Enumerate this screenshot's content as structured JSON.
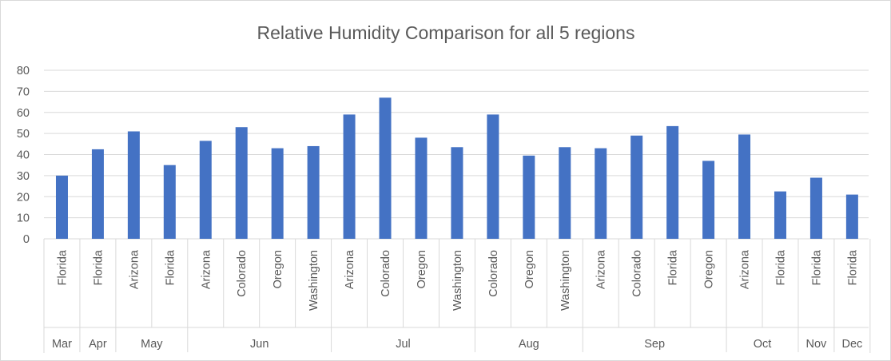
{
  "chart_data": {
    "type": "bar",
    "title": "Relative Humidity Comparison for all 5 regions",
    "xlabel": "",
    "ylabel": "",
    "ylim": [
      0,
      80
    ],
    "yticks": [
      0,
      10,
      20,
      30,
      40,
      50,
      60,
      70,
      80
    ],
    "grid": true,
    "legend": "none",
    "bar_color": "#4472c4",
    "groups": [
      {
        "label": "Mar",
        "categories": [
          "Florida"
        ],
        "values": [
          30
        ]
      },
      {
        "label": "Apr",
        "categories": [
          "Florida"
        ],
        "values": [
          42.5
        ]
      },
      {
        "label": "May",
        "categories": [
          "Arizona",
          "Florida"
        ],
        "values": [
          51,
          35
        ]
      },
      {
        "label": "Jun",
        "categories": [
          "Arizona",
          "Colorado",
          "Oregon",
          "Washington"
        ],
        "values": [
          46.5,
          53,
          43,
          44
        ]
      },
      {
        "label": "Jul",
        "categories": [
          "Arizona",
          "Colorado",
          "Oregon",
          "Washington"
        ],
        "values": [
          59,
          67,
          48,
          43.5
        ]
      },
      {
        "label": "Aug",
        "categories": [
          "Colorado",
          "Oregon",
          "Washington"
        ],
        "values": [
          59,
          39.5,
          43.5
        ]
      },
      {
        "label": "Sep",
        "categories": [
          "Arizona",
          "Colorado",
          "Florida",
          "Oregon"
        ],
        "values": [
          43,
          49,
          53.5,
          37
        ]
      },
      {
        "label": "Oct",
        "categories": [
          "Arizona",
          "Florida"
        ],
        "values": [
          49.5,
          22.5
        ]
      },
      {
        "label": "Nov",
        "categories": [
          "Florida"
        ],
        "values": [
          29
        ]
      },
      {
        "label": "Dec",
        "categories": [
          "Florida"
        ],
        "values": [
          21
        ]
      }
    ]
  }
}
